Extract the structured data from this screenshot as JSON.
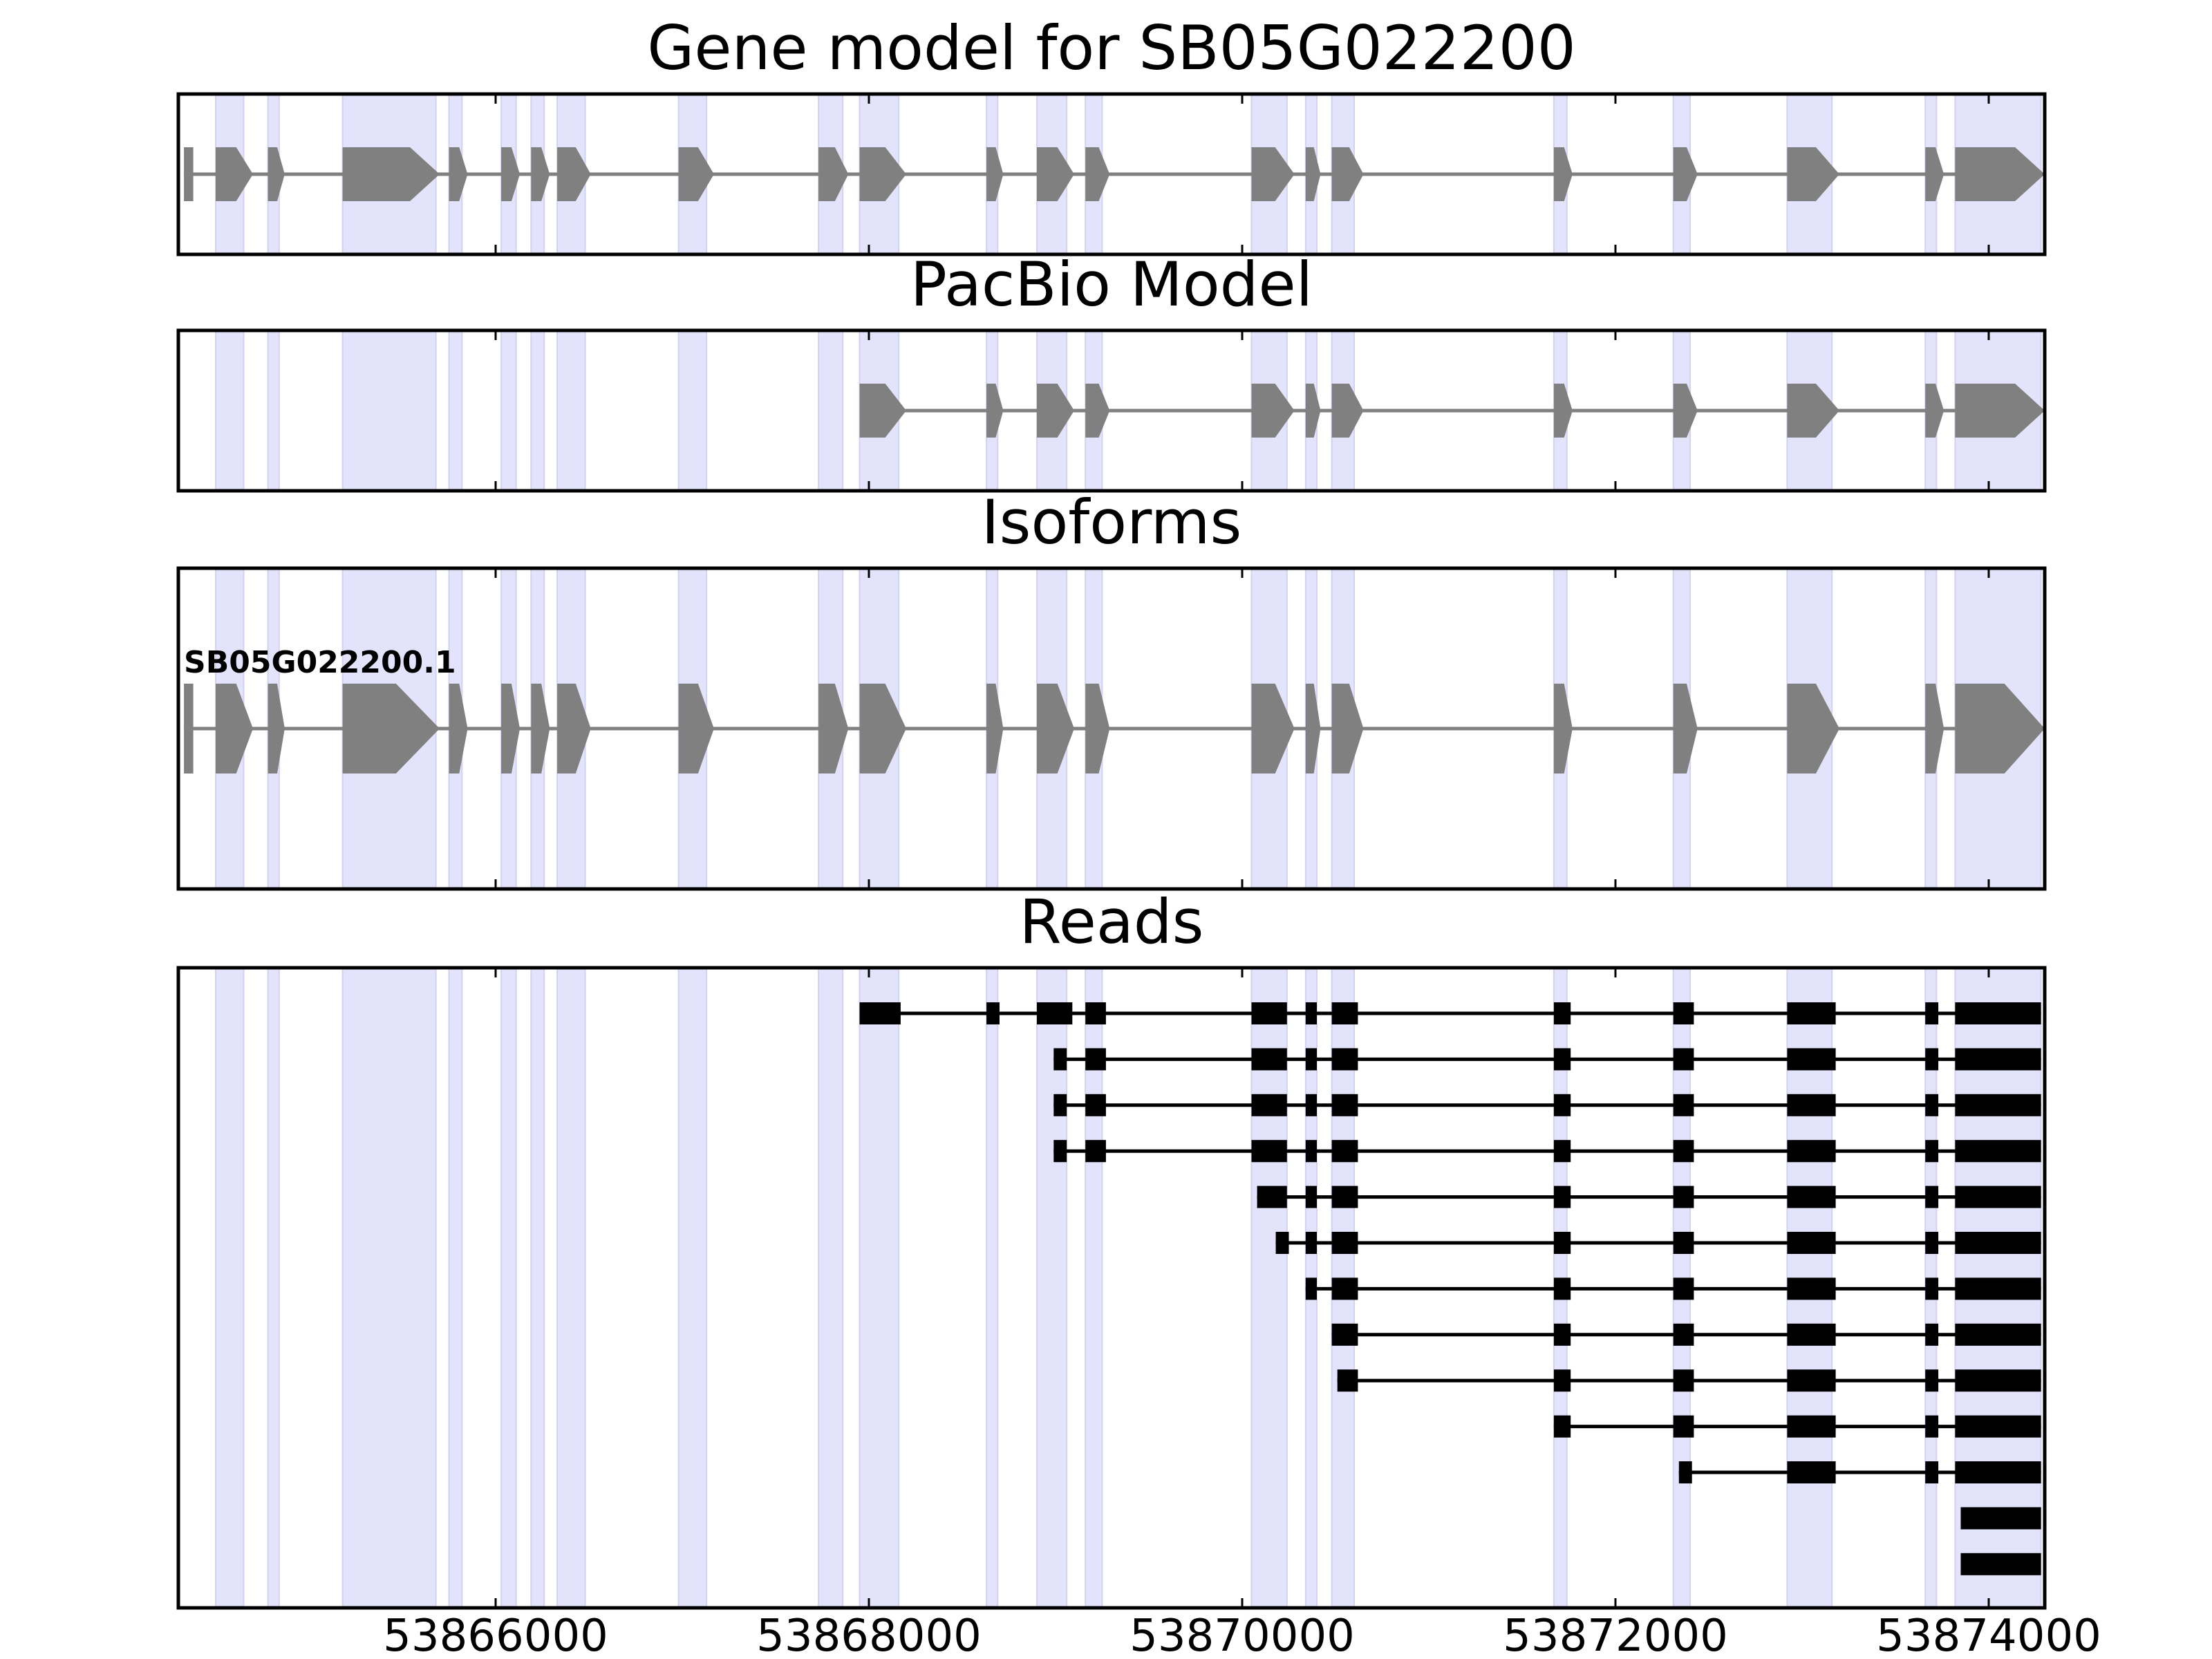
{
  "chart_data": {
    "type": "gene-structure",
    "x_axis": {
      "xlim": [
        53864300,
        53874300
      ],
      "ticks": [
        53866000,
        53868000,
        53870000,
        53872000,
        53874000
      ],
      "tick_labels": [
        "53866000",
        "53868000",
        "53870000",
        "53872000",
        "53874000"
      ]
    },
    "highlight_regions": [
      [
        53864500,
        53864650
      ],
      [
        53864780,
        53864840
      ],
      [
        53865180,
        53865680
      ],
      [
        53865750,
        53865820
      ],
      [
        53866030,
        53866110
      ],
      [
        53866190,
        53866260
      ],
      [
        53866330,
        53866480
      ],
      [
        53866980,
        53867130
      ],
      [
        53867730,
        53867860
      ],
      [
        53867950,
        53868160
      ],
      [
        53868630,
        53868690
      ],
      [
        53868900,
        53869060
      ],
      [
        53869160,
        53869250
      ],
      [
        53870050,
        53870240
      ],
      [
        53870340,
        53870400
      ],
      [
        53870480,
        53870600
      ],
      [
        53871670,
        53871740
      ],
      [
        53872310,
        53872400
      ],
      [
        53872920,
        53873160
      ],
      [
        53873660,
        53873720
      ],
      [
        53873820,
        53874280
      ]
    ],
    "panels": [
      {
        "title": "Gene model for SB05G022200",
        "tracks": [
          {
            "exons": [
              [
                53864330,
                53864380
              ],
              [
                53864500,
                53864700
              ],
              [
                53864780,
                53864870
              ],
              [
                53865180,
                53865700
              ],
              [
                53865750,
                53865850
              ],
              [
                53866030,
                53866130
              ],
              [
                53866190,
                53866290
              ],
              [
                53866330,
                53866510
              ],
              [
                53866980,
                53867170
              ],
              [
                53867730,
                53867890
              ],
              [
                53867950,
                53868200
              ],
              [
                53868630,
                53868720
              ],
              [
                53868900,
                53869100
              ],
              [
                53869160,
                53869290
              ],
              [
                53870050,
                53870280
              ],
              [
                53870340,
                53870420
              ],
              [
                53870480,
                53870650
              ],
              [
                53871670,
                53871770
              ],
              [
                53872310,
                53872440
              ],
              [
                53872920,
                53873200
              ],
              [
                53873660,
                53873760
              ],
              [
                53873820,
                53874300
              ]
            ]
          }
        ]
      },
      {
        "title": "PacBio Model",
        "tracks": [
          {
            "exons": [
              [
                53867950,
                53868200
              ],
              [
                53868630,
                53868720
              ],
              [
                53868900,
                53869100
              ],
              [
                53869160,
                53869290
              ],
              [
                53870050,
                53870280
              ],
              [
                53870340,
                53870420
              ],
              [
                53870480,
                53870650
              ],
              [
                53871670,
                53871770
              ],
              [
                53872310,
                53872440
              ],
              [
                53872920,
                53873200
              ],
              [
                53873660,
                53873760
              ],
              [
                53873820,
                53874300
              ]
            ]
          }
        ]
      },
      {
        "title": "Isoforms",
        "tracks": [
          {
            "label": "SB05G022200.1",
            "exons": [
              [
                53864330,
                53864380
              ],
              [
                53864500,
                53864700
              ],
              [
                53864780,
                53864870
              ],
              [
                53865180,
                53865700
              ],
              [
                53865750,
                53865850
              ],
              [
                53866030,
                53866130
              ],
              [
                53866190,
                53866290
              ],
              [
                53866330,
                53866510
              ],
              [
                53866980,
                53867170
              ],
              [
                53867730,
                53867890
              ],
              [
                53867950,
                53868200
              ],
              [
                53868630,
                53868720
              ],
              [
                53868900,
                53869100
              ],
              [
                53869160,
                53869290
              ],
              [
                53870050,
                53870280
              ],
              [
                53870340,
                53870420
              ],
              [
                53870480,
                53870650
              ],
              [
                53871670,
                53871770
              ],
              [
                53872310,
                53872440
              ],
              [
                53872920,
                53873200
              ],
              [
                53873660,
                53873760
              ],
              [
                53873820,
                53874300
              ]
            ]
          }
        ]
      },
      {
        "title": "Reads",
        "tracks": [
          {
            "exons": [
              [
                53867950,
                53868170
              ],
              [
                53868630,
                53868700
              ],
              [
                53868900,
                53869090
              ],
              [
                53869160,
                53869270
              ],
              [
                53870050,
                53870240
              ],
              [
                53870340,
                53870400
              ],
              [
                53870480,
                53870620
              ],
              [
                53871670,
                53871760
              ],
              [
                53872310,
                53872420
              ],
              [
                53872920,
                53873180
              ],
              [
                53873660,
                53873730
              ],
              [
                53873820,
                53874280
              ]
            ]
          },
          {
            "exons": [
              [
                53868990,
                53869060
              ],
              [
                53869160,
                53869270
              ],
              [
                53870050,
                53870240
              ],
              [
                53870340,
                53870400
              ],
              [
                53870480,
                53870620
              ],
              [
                53871670,
                53871760
              ],
              [
                53872310,
                53872420
              ],
              [
                53872920,
                53873180
              ],
              [
                53873660,
                53873730
              ],
              [
                53873820,
                53874280
              ]
            ]
          },
          {
            "exons": [
              [
                53868990,
                53869060
              ],
              [
                53869160,
                53869270
              ],
              [
                53870050,
                53870240
              ],
              [
                53870340,
                53870400
              ],
              [
                53870480,
                53870620
              ],
              [
                53871670,
                53871760
              ],
              [
                53872310,
                53872420
              ],
              [
                53872920,
                53873180
              ],
              [
                53873660,
                53873730
              ],
              [
                53873820,
                53874280
              ]
            ]
          },
          {
            "exons": [
              [
                53868990,
                53869060
              ],
              [
                53869160,
                53869270
              ],
              [
                53870050,
                53870240
              ],
              [
                53870340,
                53870400
              ],
              [
                53870480,
                53870620
              ],
              [
                53871670,
                53871760
              ],
              [
                53872310,
                53872420
              ],
              [
                53872920,
                53873180
              ],
              [
                53873660,
                53873730
              ],
              [
                53873820,
                53874280
              ]
            ]
          },
          {
            "exons": [
              [
                53870080,
                53870240
              ],
              [
                53870340,
                53870400
              ],
              [
                53870480,
                53870620
              ],
              [
                53871670,
                53871760
              ],
              [
                53872310,
                53872420
              ],
              [
                53872920,
                53873180
              ],
              [
                53873660,
                53873730
              ],
              [
                53873820,
                53874280
              ]
            ]
          },
          {
            "exons": [
              [
                53870180,
                53870250
              ],
              [
                53870340,
                53870400
              ],
              [
                53870480,
                53870620
              ],
              [
                53871670,
                53871760
              ],
              [
                53872310,
                53872420
              ],
              [
                53872920,
                53873180
              ],
              [
                53873660,
                53873730
              ],
              [
                53873820,
                53874280
              ]
            ]
          },
          {
            "exons": [
              [
                53870340,
                53870400
              ],
              [
                53870480,
                53870620
              ],
              [
                53871670,
                53871760
              ],
              [
                53872310,
                53872420
              ],
              [
                53872920,
                53873180
              ],
              [
                53873660,
                53873730
              ],
              [
                53873820,
                53874280
              ]
            ]
          },
          {
            "exons": [
              [
                53870480,
                53870620
              ],
              [
                53871670,
                53871760
              ],
              [
                53872310,
                53872420
              ],
              [
                53872920,
                53873180
              ],
              [
                53873660,
                53873730
              ],
              [
                53873820,
                53874280
              ]
            ]
          },
          {
            "exons": [
              [
                53870510,
                53870620
              ],
              [
                53871670,
                53871760
              ],
              [
                53872310,
                53872420
              ],
              [
                53872920,
                53873180
              ],
              [
                53873660,
                53873730
              ],
              [
                53873820,
                53874280
              ]
            ]
          },
          {
            "exons": [
              [
                53871670,
                53871760
              ],
              [
                53872310,
                53872420
              ],
              [
                53872920,
                53873180
              ],
              [
                53873660,
                53873730
              ],
              [
                53873820,
                53874280
              ]
            ]
          },
          {
            "exons": [
              [
                53872340,
                53872410
              ],
              [
                53872920,
                53873180
              ],
              [
                53873660,
                53873730
              ],
              [
                53873820,
                53874280
              ]
            ]
          },
          {
            "exons": [
              [
                53873850,
                53874280
              ]
            ]
          },
          {
            "exons": [
              [
                53873850,
                53874280
              ]
            ]
          }
        ]
      }
    ]
  },
  "colors": {
    "highlight": "#e3e3fb",
    "highlight_edge": "#d2d2f2",
    "model_exon": "#808080",
    "model_intron": "#808080",
    "read_exon": "#000000",
    "read_intron": "#000000",
    "axis": "#000000"
  }
}
